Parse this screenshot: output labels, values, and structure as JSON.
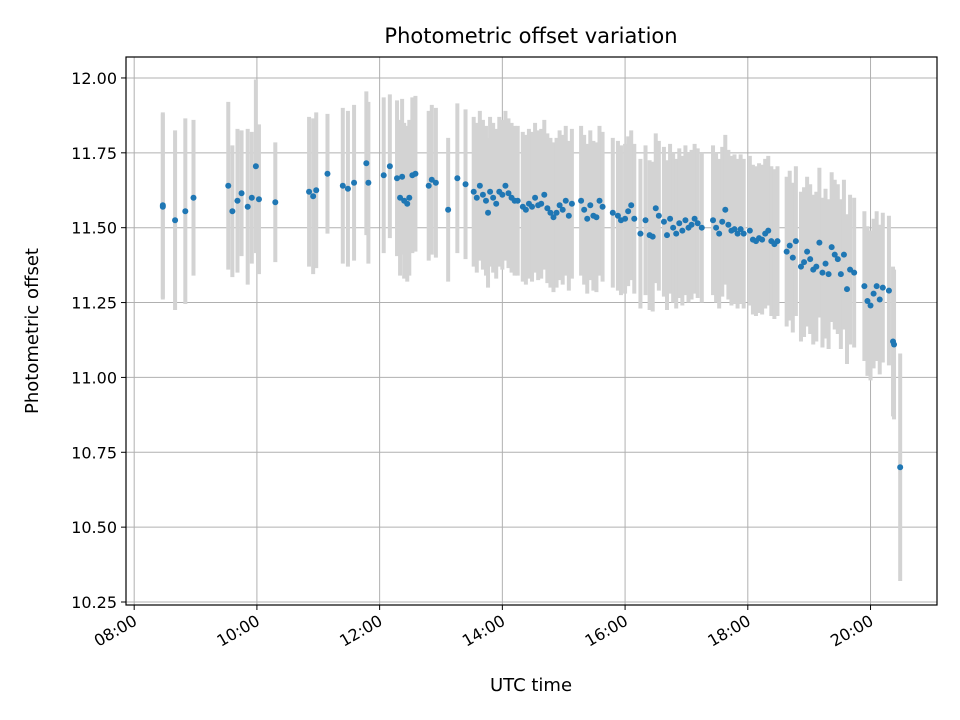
{
  "chart_data": {
    "type": "scatter",
    "title": "Photometric offset variation",
    "xlabel": "UTC time",
    "ylabel": "Photometric offset",
    "xlim": [
      "07:52",
      "21:05"
    ],
    "ylim": [
      10.24,
      12.07
    ],
    "x_ticks": [
      "08:00",
      "10:00",
      "12:00",
      "14:00",
      "16:00",
      "18:00",
      "20:00"
    ],
    "y_ticks": [
      "10.25",
      "10.50",
      "10.75",
      "11.00",
      "11.25",
      "11.50",
      "11.75",
      "12.00"
    ],
    "grid": true,
    "colors": {
      "point": "#1f77b4",
      "errorbar": "#d3d3d3",
      "grid": "#b0b0b0"
    },
    "series": [
      {
        "points": [
          [
            "08:28",
            11.575,
            0.31
          ],
          [
            "08:28",
            11.57,
            0.31
          ],
          [
            "08:40",
            11.525,
            0.3
          ],
          [
            "08:50",
            11.555,
            0.31
          ],
          [
            "08:58",
            11.6,
            0.26
          ],
          [
            "09:32",
            11.64,
            0.28
          ],
          [
            "09:36",
            11.555,
            0.22
          ],
          [
            "09:41",
            11.59,
            0.24
          ],
          [
            "09:45",
            11.615,
            0.21
          ],
          [
            "09:51",
            11.57,
            0.26
          ],
          [
            "09:55",
            11.6,
            0.22
          ],
          [
            "09:59",
            11.705,
            0.29
          ],
          [
            "10:02",
            11.595,
            0.25
          ],
          [
            "10:18",
            11.585,
            0.2
          ],
          [
            "10:51",
            11.62,
            0.25
          ],
          [
            "10:55",
            11.605,
            0.26
          ],
          [
            "10:58",
            11.625,
            0.26
          ],
          [
            "11:09",
            11.68,
            0.2
          ],
          [
            "11:24",
            11.64,
            0.26
          ],
          [
            "11:29",
            11.63,
            0.26
          ],
          [
            "11:35",
            11.65,
            0.26
          ],
          [
            "11:47",
            11.715,
            0.24
          ],
          [
            "11:49",
            11.65,
            0.27
          ],
          [
            "12:04",
            11.675,
            0.26
          ],
          [
            "12:10",
            11.705,
            0.24
          ],
          [
            "12:17",
            11.665,
            0.26
          ],
          [
            "12:20",
            11.6,
            0.26
          ],
          [
            "12:22",
            11.67,
            0.26
          ],
          [
            "12:24",
            11.59,
            0.26
          ],
          [
            "12:27",
            11.58,
            0.26
          ],
          [
            "12:29",
            11.6,
            0.26
          ],
          [
            "12:32",
            11.675,
            0.26
          ],
          [
            "12:35",
            11.68,
            0.26
          ],
          [
            "12:48",
            11.64,
            0.25
          ],
          [
            "12:51",
            11.66,
            0.25
          ],
          [
            "12:55",
            11.65,
            0.25
          ],
          [
            "13:07",
            11.56,
            0.24
          ],
          [
            "13:16",
            11.665,
            0.25
          ],
          [
            "13:24",
            11.645,
            0.25
          ],
          [
            "13:32",
            11.62,
            0.25
          ],
          [
            "13:35",
            11.6,
            0.25
          ],
          [
            "13:38",
            11.64,
            0.25
          ],
          [
            "13:41",
            11.61,
            0.25
          ],
          [
            "13:44",
            11.59,
            0.25
          ],
          [
            "13:46",
            11.55,
            0.25
          ],
          [
            "13:48",
            11.62,
            0.25
          ],
          [
            "13:51",
            11.6,
            0.25
          ],
          [
            "13:54",
            11.58,
            0.25
          ],
          [
            "13:57",
            11.62,
            0.25
          ],
          [
            "14:00",
            11.61,
            0.25
          ],
          [
            "14:03",
            11.64,
            0.25
          ],
          [
            "14:06",
            11.615,
            0.25
          ],
          [
            "14:09",
            11.6,
            0.25
          ],
          [
            "14:12",
            11.59,
            0.25
          ],
          [
            "14:15",
            11.59,
            0.25
          ],
          [
            "14:20",
            11.57,
            0.25
          ],
          [
            "14:23",
            11.56,
            0.25
          ],
          [
            "14:26",
            11.58,
            0.25
          ],
          [
            "14:29",
            11.57,
            0.25
          ],
          [
            "14:32",
            11.6,
            0.25
          ],
          [
            "14:35",
            11.575,
            0.25
          ],
          [
            "14:38",
            11.58,
            0.25
          ],
          [
            "14:41",
            11.61,
            0.25
          ],
          [
            "14:44",
            11.565,
            0.25
          ],
          [
            "14:47",
            11.55,
            0.25
          ],
          [
            "14:50",
            11.535,
            0.25
          ],
          [
            "14:53",
            11.55,
            0.25
          ],
          [
            "14:56",
            11.575,
            0.25
          ],
          [
            "14:59",
            11.56,
            0.25
          ],
          [
            "15:02",
            11.59,
            0.25
          ],
          [
            "15:05",
            11.54,
            0.25
          ],
          [
            "15:08",
            11.58,
            0.25
          ],
          [
            "15:17",
            11.59,
            0.25
          ],
          [
            "15:20",
            11.56,
            0.25
          ],
          [
            "15:23",
            11.53,
            0.25
          ],
          [
            "15:26",
            11.575,
            0.25
          ],
          [
            "15:29",
            11.54,
            0.25
          ],
          [
            "15:32",
            11.535,
            0.25
          ],
          [
            "15:35",
            11.59,
            0.25
          ],
          [
            "15:38",
            11.57,
            0.25
          ],
          [
            "15:48",
            11.55,
            0.25
          ],
          [
            "15:53",
            11.54,
            0.25
          ],
          [
            "15:56",
            11.525,
            0.25
          ],
          [
            "16:00",
            11.53,
            0.25
          ],
          [
            "16:03",
            11.555,
            0.25
          ],
          [
            "16:06",
            11.575,
            0.25
          ],
          [
            "16:09",
            11.53,
            0.25
          ],
          [
            "16:15",
            11.48,
            0.25
          ],
          [
            "16:20",
            11.525,
            0.25
          ],
          [
            "16:24",
            11.475,
            0.25
          ],
          [
            "16:27",
            11.47,
            0.25
          ],
          [
            "16:30",
            11.565,
            0.25
          ],
          [
            "16:33",
            11.54,
            0.25
          ],
          [
            "16:38",
            11.52,
            0.25
          ],
          [
            "16:41",
            11.475,
            0.25
          ],
          [
            "16:44",
            11.53,
            0.25
          ],
          [
            "16:47",
            11.5,
            0.25
          ],
          [
            "16:50",
            11.48,
            0.25
          ],
          [
            "16:53",
            11.515,
            0.25
          ],
          [
            "16:56",
            11.49,
            0.25
          ],
          [
            "16:59",
            11.525,
            0.25
          ],
          [
            "17:02",
            11.5,
            0.25
          ],
          [
            "17:05",
            11.51,
            0.25
          ],
          [
            "17:08",
            11.53,
            0.25
          ],
          [
            "17:11",
            11.515,
            0.25
          ],
          [
            "17:15",
            11.5,
            0.25
          ],
          [
            "17:26",
            11.525,
            0.25
          ],
          [
            "17:29",
            11.5,
            0.25
          ],
          [
            "17:32",
            11.48,
            0.25
          ],
          [
            "17:35",
            11.52,
            0.25
          ],
          [
            "17:38",
            11.56,
            0.25
          ],
          [
            "17:41",
            11.51,
            0.25
          ],
          [
            "17:44",
            11.49,
            0.25
          ],
          [
            "17:47",
            11.495,
            0.25
          ],
          [
            "17:50",
            11.48,
            0.25
          ],
          [
            "17:53",
            11.495,
            0.25
          ],
          [
            "17:56",
            11.48,
            0.25
          ],
          [
            "18:02",
            11.49,
            0.25
          ],
          [
            "18:05",
            11.46,
            0.25
          ],
          [
            "18:08",
            11.455,
            0.25
          ],
          [
            "18:11",
            11.465,
            0.25
          ],
          [
            "18:14",
            11.46,
            0.25
          ],
          [
            "18:17",
            11.48,
            0.25
          ],
          [
            "18:20",
            11.49,
            0.25
          ],
          [
            "18:23",
            11.455,
            0.25
          ],
          [
            "18:26",
            11.445,
            0.25
          ],
          [
            "18:29",
            11.455,
            0.25
          ],
          [
            "18:38",
            11.42,
            0.25
          ],
          [
            "18:41",
            11.44,
            0.25
          ],
          [
            "18:44",
            11.4,
            0.25
          ],
          [
            "18:47",
            11.455,
            0.25
          ],
          [
            "18:52",
            11.37,
            0.25
          ],
          [
            "18:55",
            11.385,
            0.25
          ],
          [
            "18:58",
            11.42,
            0.25
          ],
          [
            "19:01",
            11.395,
            0.25
          ],
          [
            "19:04",
            11.36,
            0.25
          ],
          [
            "19:07",
            11.37,
            0.25
          ],
          [
            "19:10",
            11.45,
            0.25
          ],
          [
            "19:13",
            11.35,
            0.25
          ],
          [
            "19:16",
            11.38,
            0.25
          ],
          [
            "19:19",
            11.345,
            0.25
          ],
          [
            "19:22",
            11.435,
            0.25
          ],
          [
            "19:25",
            11.41,
            0.25
          ],
          [
            "19:28",
            11.395,
            0.25
          ],
          [
            "19:31",
            11.345,
            0.25
          ],
          [
            "19:34",
            11.41,
            0.25
          ],
          [
            "19:37",
            11.295,
            0.25
          ],
          [
            "19:40",
            11.36,
            0.25
          ],
          [
            "19:44",
            11.35,
            0.25
          ],
          [
            "19:54",
            11.305,
            0.25
          ],
          [
            "19:57",
            11.255,
            0.25
          ],
          [
            "20:00",
            11.24,
            0.25
          ],
          [
            "20:03",
            11.28,
            0.25
          ],
          [
            "20:06",
            11.305,
            0.25
          ],
          [
            "20:09",
            11.26,
            0.25
          ],
          [
            "20:12",
            11.3,
            0.25
          ],
          [
            "20:18",
            11.29,
            0.25
          ],
          [
            "20:22",
            11.12,
            0.25
          ],
          [
            "20:23",
            11.11,
            0.25
          ],
          [
            "20:29",
            10.7,
            0.38
          ]
        ]
      }
    ]
  }
}
